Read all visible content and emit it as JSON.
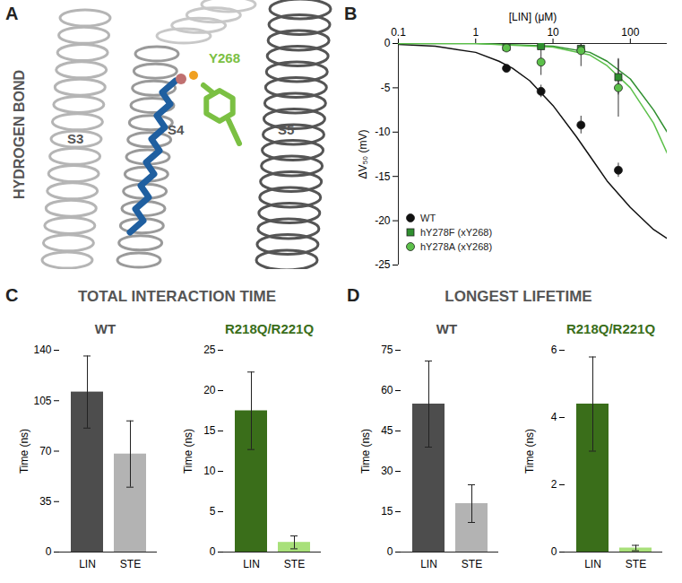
{
  "diagram": {
    "panel": "A",
    "title": "HYDROGEN BOND",
    "labels": [
      "S3",
      "S4",
      "S5"
    ],
    "residue": "Y268"
  },
  "chart_data": [
    {
      "panel": "B",
      "type": "line",
      "xlabel": "[LIN] (μM)",
      "ylabel": "ΔV₅₀ (mV)",
      "log": "x",
      "xlim": [
        0.1,
        300
      ],
      "xticks": [
        0.1,
        1,
        10,
        100
      ],
      "ylim": [
        -25,
        0
      ],
      "yticks": [
        -25,
        -20,
        -15,
        -10,
        -5,
        0
      ],
      "legend": "bottom-left",
      "series": [
        {
          "name": "WT",
          "color": "#111111",
          "marker": "circle",
          "x": [
            2.5,
            7,
            23,
            70
          ],
          "values": [
            -2.8,
            -5.4,
            -9.2,
            -14.3
          ],
          "errors": [
            0.3,
            0.7,
            1.0,
            0.8
          ],
          "fit": {
            "x": [
              0.1,
              0.3,
              1,
              2,
              3,
              5,
              10,
              20,
              30,
              50,
              100,
              200,
              300
            ],
            "values": [
              -0.1,
              -0.3,
              -1,
              -2,
              -2.8,
              -4.2,
              -7,
              -10.5,
              -12.7,
              -15.5,
              -18.5,
              -21,
              -22
            ]
          }
        },
        {
          "name": "hY278F (xY268)",
          "color": "#2f8f2f",
          "marker": "square",
          "x": [
            2.5,
            7,
            23,
            70
          ],
          "values": [
            -0.4,
            -0.3,
            -0.6,
            -3.8
          ],
          "errors": [
            0.3,
            0.3,
            0.5,
            2.0
          ],
          "fit": {
            "x": [
              0.1,
              1,
              10,
              30,
              50,
              100,
              200,
              300
            ],
            "values": [
              0,
              0,
              -0.3,
              -1,
              -2,
              -4,
              -7.5,
              -10
            ]
          }
        },
        {
          "name": "hY278A (xY268)",
          "color": "#5cc04a",
          "marker": "circle",
          "x": [
            2.5,
            7,
            23,
            70
          ],
          "values": [
            -0.5,
            -2.1,
            -0.8,
            -5.0
          ],
          "errors": [
            0.3,
            1.5,
            1.8,
            3.3
          ],
          "fit": {
            "x": [
              0.1,
              1,
              10,
              30,
              50,
              100,
              200,
              300
            ],
            "values": [
              0,
              0,
              -0.4,
              -1.3,
              -2.5,
              -5,
              -9,
              -12.4
            ]
          }
        }
      ]
    },
    {
      "panel": "C",
      "type": "bar",
      "title": "TOTAL INTERACTION TIME",
      "subtitle": "WT",
      "ylabel": "Time (ns)",
      "categories": [
        "LIN",
        "STE"
      ],
      "values": [
        111,
        68
      ],
      "errors": [
        25,
        23
      ],
      "colors": [
        "#4d4d4d",
        "#b3b3b3"
      ],
      "ylim": [
        0,
        140
      ],
      "yticks": [
        0,
        35,
        70,
        105,
        140
      ]
    },
    {
      "panel": "C",
      "type": "bar",
      "title": "TOTAL INTERACTION TIME",
      "subtitle": "R218Q/R221Q",
      "ylabel": "Time (ns)",
      "categories": [
        "LIN",
        "STE"
      ],
      "values": [
        17.5,
        1.2
      ],
      "errors": [
        4.8,
        0.8
      ],
      "colors": [
        "#3a6e1a",
        "#a8e07a"
      ],
      "ylim": [
        0,
        25
      ],
      "yticks": [
        0,
        5,
        10,
        15,
        20,
        25
      ]
    },
    {
      "panel": "D",
      "type": "bar",
      "title": "LONGEST LIFETIME",
      "subtitle": "WT",
      "ylabel": "Time (ns)",
      "categories": [
        "LIN",
        "STE"
      ],
      "values": [
        55,
        18
      ],
      "errors": [
        16,
        7
      ],
      "colors": [
        "#4d4d4d",
        "#b3b3b3"
      ],
      "ylim": [
        0,
        75
      ],
      "yticks": [
        0,
        15,
        30,
        45,
        60,
        75
      ]
    },
    {
      "panel": "D",
      "type": "bar",
      "title": "LONGEST LIFETIME",
      "subtitle": "R218Q/R221Q",
      "ylabel": "Time (ns)",
      "categories": [
        "LIN",
        "STE"
      ],
      "values": [
        4.4,
        0.12
      ],
      "errors": [
        1.4,
        0.08
      ],
      "colors": [
        "#3a6e1a",
        "#a8e07a"
      ],
      "ylim": [
        0,
        6
      ],
      "yticks": [
        0,
        2,
        4,
        6
      ]
    }
  ]
}
